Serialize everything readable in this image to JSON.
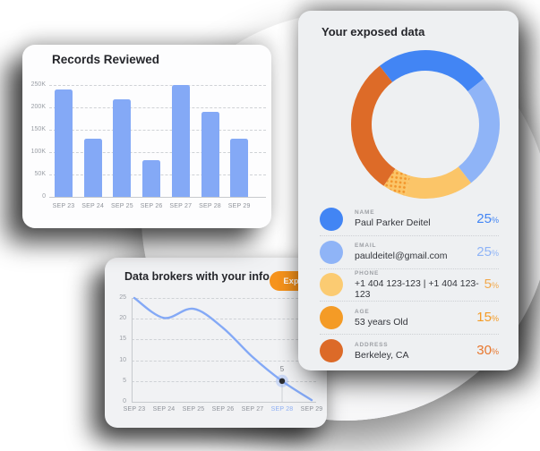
{
  "palette": {
    "blue": "#4285f4",
    "light_blue": "#8fb4f7",
    "amber": "#fbc568",
    "orange": "#f49b26",
    "dark_orange": "#dd6b28",
    "chart_blue": "#84a9f6",
    "explore_orange": "#f6931c",
    "highlight_tick_blue": "#8fb0f4"
  },
  "explore_button": {
    "label": "Explore"
  },
  "chart_data": [
    {
      "type": "bar",
      "title": "Records Reviewed",
      "categories": [
        "SEP 23",
        "SEP 24",
        "SEP 25",
        "SEP 26",
        "SEP 27",
        "SEP 28",
        "SEP 29"
      ],
      "values": [
        240000,
        130000,
        218000,
        83000,
        251000,
        190000,
        130000
      ],
      "y_ticks": [
        "250K",
        "200K",
        "150K",
        "100K",
        "50K",
        "0"
      ],
      "ylim": [
        0,
        250000
      ],
      "bar_color": "#84a9f6",
      "grid": "dashed horizontal"
    },
    {
      "type": "line",
      "title": "Data brokers with your info",
      "categories": [
        "SEP 23",
        "SEP 24",
        "SEP 25",
        "SEP 26",
        "SEP 27",
        "SEP 28",
        "SEP 29"
      ],
      "values": [
        25,
        20.2,
        22.4,
        17.8,
        10.8,
        5,
        0.4
      ],
      "y_ticks": [
        "25",
        "20",
        "15",
        "10",
        "5",
        "0"
      ],
      "ylim": [
        0,
        25
      ],
      "line_color": "#84a9f6",
      "grid": "dashed horizontal",
      "marker": {
        "index": 5,
        "label": "5"
      },
      "highlight_tick": {
        "index": 5,
        "label": "SEP 28",
        "color": "#8fb0f4"
      }
    },
    {
      "type": "pie",
      "title": "Your exposed data",
      "donut": true,
      "start_angle_from_top_deg": -38,
      "segments": [
        {
          "label": "Name",
          "value": 25,
          "color": "#4285f4"
        },
        {
          "label": "Email",
          "value": 25,
          "color": "#8fb4f7"
        },
        {
          "label": "Age",
          "value": 15,
          "color": "#fbc568"
        },
        {
          "label": "Phone",
          "value": 5,
          "color": "#fbc568",
          "pattern": "orange-dots"
        },
        {
          "label": "Address",
          "value": 30,
          "color": "#dd6b28"
        }
      ],
      "percent_symbol": "%",
      "rows": [
        {
          "label": "NAME",
          "value": "Paul Parker Deitel",
          "percent": "25",
          "dot_color": "#4285f4",
          "pct_color": "#4285f4"
        },
        {
          "label": "EMAIL",
          "value": "pauldeitel@gmail.com",
          "percent": "25",
          "dot_color": "#8fb4f7",
          "pct_color": "#8fb4f7"
        },
        {
          "label": "PHONE",
          "value": "+1 404 123-123  |  +1 404 123-123",
          "percent": "5",
          "dot_color": "#fbcb72",
          "pct_color": "#f2a94c"
        },
        {
          "label": "AGE",
          "value": "53 years Old",
          "percent": "15",
          "dot_color": "#f49b26",
          "pct_color": "#f49b26"
        },
        {
          "label": "ADDRESS",
          "value": "Berkeley, CA",
          "percent": "30",
          "dot_color": "#dc6a28",
          "pct_color": "#e8772e"
        }
      ]
    }
  ]
}
